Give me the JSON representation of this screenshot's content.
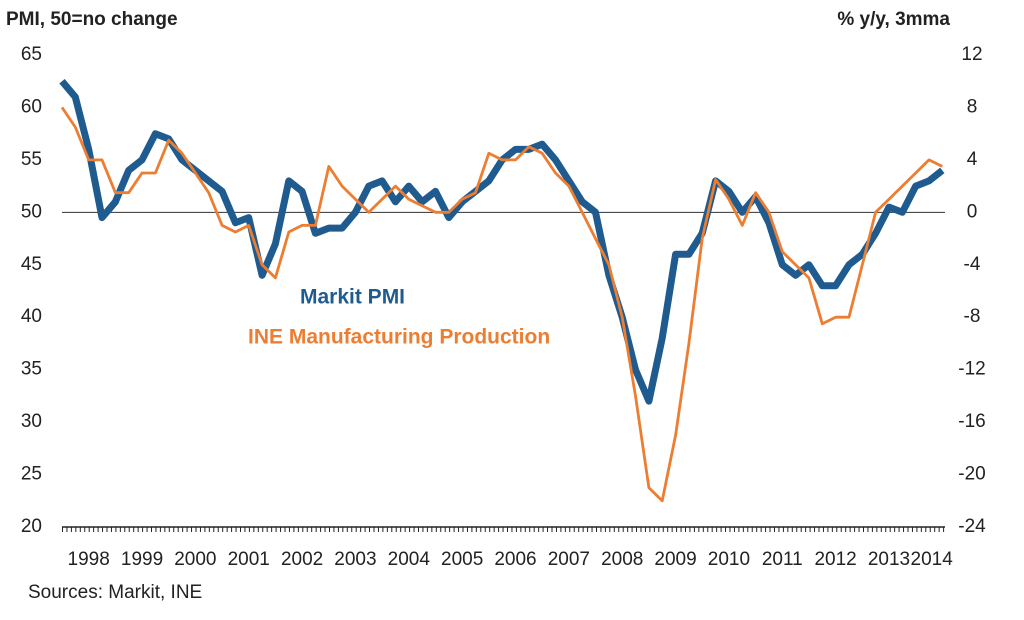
{
  "chart_data": {
    "type": "line",
    "y_label": "PMI, 50=no change",
    "y2_label": "% y/y, 3mma",
    "source": "Sources: Markit, INE",
    "x": [
      1998,
      1998.25,
      1998.5,
      1998.75,
      1999,
      1999.25,
      1999.5,
      1999.75,
      2000,
      2000.25,
      2000.5,
      2000.75,
      2001,
      2001.25,
      2001.5,
      2001.75,
      2002,
      2002.25,
      2002.5,
      2002.75,
      2003,
      2003.25,
      2003.5,
      2003.75,
      2004,
      2004.25,
      2004.5,
      2004.75,
      2005,
      2005.25,
      2005.5,
      2005.75,
      2006,
      2006.25,
      2006.5,
      2006.75,
      2007,
      2007.25,
      2007.5,
      2007.75,
      2008,
      2008.25,
      2008.5,
      2008.75,
      2009,
      2009.25,
      2009.5,
      2009.75,
      2010,
      2010.25,
      2010.5,
      2010.75,
      2011,
      2011.25,
      2011.5,
      2011.75,
      2012,
      2012.25,
      2012.5,
      2012.75,
      2013,
      2013.25,
      2013.5,
      2013.75,
      2014,
      2014.25,
      2014.5
    ],
    "xlim": [
      1998,
      2014.55
    ],
    "xticks": [
      {
        "value": 1998.5,
        "label": "1998"
      },
      {
        "value": 1999.5,
        "label": "1999"
      },
      {
        "value": 2000.5,
        "label": "2000"
      },
      {
        "value": 2001.5,
        "label": "2001"
      },
      {
        "value": 2002.5,
        "label": "2002"
      },
      {
        "value": 2003.5,
        "label": "2003"
      },
      {
        "value": 2004.5,
        "label": "2004"
      },
      {
        "value": 2005.5,
        "label": "2005"
      },
      {
        "value": 2006.5,
        "label": "2006"
      },
      {
        "value": 2007.5,
        "label": "2007"
      },
      {
        "value": 2008.5,
        "label": "2008"
      },
      {
        "value": 2009.5,
        "label": "2009"
      },
      {
        "value": 2010.5,
        "label": "2010"
      },
      {
        "value": 2011.5,
        "label": "2011"
      },
      {
        "value": 2012.5,
        "label": "2012"
      },
      {
        "value": 2013.5,
        "label": "2013"
      },
      {
        "value": 2014.3,
        "label": "2014"
      }
    ],
    "ylim": [
      20,
      65
    ],
    "yticks": [
      20,
      25,
      30,
      35,
      40,
      45,
      50,
      55,
      60,
      65
    ],
    "y2lim": [
      -24,
      12
    ],
    "y2ticks": [
      -24,
      -20,
      -16,
      -12,
      -8,
      -4,
      0,
      4,
      8,
      12
    ],
    "reference_line": 50,
    "series": [
      {
        "name": "Markit PMI",
        "color": "#1f5b8e",
        "values": [
          62.5,
          61,
          56,
          49.5,
          51,
          54,
          55,
          57.5,
          57,
          55,
          54,
          53,
          52,
          49,
          49.5,
          44,
          47,
          53,
          52,
          48,
          48.5,
          48.5,
          50,
          52.5,
          53,
          51,
          52.5,
          51,
          52,
          49.5,
          51,
          52,
          53,
          55,
          56,
          56,
          56.5,
          55,
          53,
          51,
          50,
          44,
          40,
          35,
          32,
          38,
          46,
          46,
          48,
          53,
          52,
          50,
          51.5,
          49,
          45,
          44,
          45,
          43,
          43,
          45,
          46,
          48,
          50.5,
          50,
          52.5,
          53,
          54
        ]
      },
      {
        "name": "INE Manufacturing Production",
        "color": "#ed7d31",
        "axis": "y2",
        "values": [
          8,
          6.5,
          4,
          4,
          1.5,
          1.5,
          3,
          3,
          5.5,
          4.5,
          3,
          1.5,
          -1,
          -1.5,
          -1,
          -4,
          -5,
          -1.5,
          -1,
          -1,
          3.5,
          2,
          1,
          0,
          1,
          2,
          1,
          0.5,
          0,
          0,
          1,
          1.5,
          4.5,
          4,
          4,
          5,
          4.5,
          3,
          2,
          0,
          -2,
          -4,
          -8,
          -14,
          -21,
          -22,
          -17,
          -10,
          -2,
          2.5,
          1,
          -1,
          1.5,
          0,
          -3,
          -4,
          -5,
          -8.5,
          -8,
          -8,
          -4,
          0,
          1,
          2,
          3,
          4,
          3.5
        ]
      }
    ]
  }
}
